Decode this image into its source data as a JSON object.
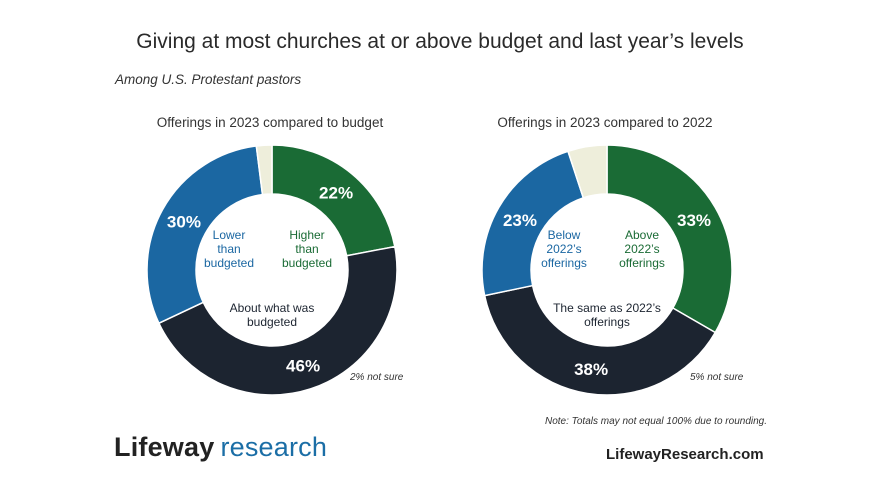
{
  "title": "Giving at most churches at or above budget and last year’s levels",
  "subtitle": "Among U.S. Protestant pastors",
  "colors": {
    "green": "#1a6b35",
    "blue": "#1b67a2",
    "dark": "#1c2430",
    "cream": "#eeeedb"
  },
  "chart_data": [
    {
      "type": "pie",
      "title": "Offerings in 2023 compared to budget",
      "slices": [
        {
          "label": "Higher than budgeted",
          "value": 22,
          "pct_label": "22%",
          "color": "#1a6b35",
          "lines": [
            "Higher",
            "than",
            "budgeted"
          ]
        },
        {
          "label": "About what was budgeted",
          "value": 46,
          "pct_label": "46%",
          "color": "#1c2430",
          "lines": [
            "About what was",
            "budgeted"
          ]
        },
        {
          "label": "Lower than budgeted",
          "value": 30,
          "pct_label": "30%",
          "color": "#1b67a2",
          "lines": [
            "Lower",
            "than",
            "budgeted"
          ]
        },
        {
          "label": "Not sure",
          "value": 2,
          "pct_label": "",
          "color": "#eeeedb",
          "lines": []
        }
      ],
      "not_sure_note": "2% not sure"
    },
    {
      "type": "pie",
      "title": "Offerings in 2023 compared to 2022",
      "slices": [
        {
          "label": "Above 2022’s offerings",
          "value": 33,
          "pct_label": "33%",
          "color": "#1a6b35",
          "lines": [
            "Above",
            "2022’s",
            "offerings"
          ]
        },
        {
          "label": "The same as 2022’s offerings",
          "value": 38,
          "pct_label": "38%",
          "color": "#1c2430",
          "lines": [
            "The same as 2022’s",
            "offerings"
          ]
        },
        {
          "label": "Below 2022’s offerings",
          "value": 23,
          "pct_label": "23%",
          "color": "#1b67a2",
          "lines": [
            "Below",
            "2022’s",
            "offerings"
          ]
        },
        {
          "label": "Not sure",
          "value": 5,
          "pct_label": "",
          "color": "#eeeedb",
          "lines": []
        }
      ],
      "not_sure_note": "5% not sure"
    }
  ],
  "note": "Note: Totals may not equal 100% due to rounding.",
  "logo": {
    "brand": "Lifeway",
    "sub": "research"
  },
  "website": "LifewayResearch.com"
}
